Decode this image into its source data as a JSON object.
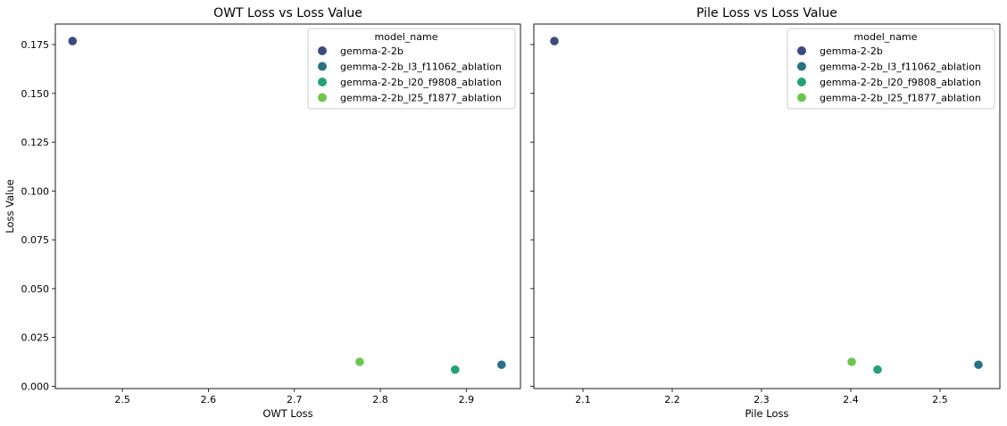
{
  "chart_data": [
    {
      "type": "scatter",
      "title": "OWT Loss vs Loss Value",
      "xlabel": "OWT Loss",
      "ylabel": "Loss Value",
      "xlim": [
        2.422,
        2.963
      ],
      "ylim": [
        -0.0012,
        0.1855
      ],
      "xticks": [
        "2.5",
        "2.6",
        "2.7",
        "2.8",
        "2.9"
      ],
      "yticks": [
        "0.000",
        "0.025",
        "0.050",
        "0.075",
        "0.100",
        "0.125",
        "0.150",
        "0.175"
      ],
      "legend": {
        "title": "model_name",
        "position": "top-right",
        "entries": [
          "gemma-2-2b",
          "gemma-2-2b_l3_f11062_ablation",
          "gemma-2-2b_l20_f9808_ablation",
          "gemma-2-2b_l25_f1877_ablation"
        ]
      },
      "series": [
        {
          "name": "gemma-2-2b",
          "color": "#3b4a7f",
          "x": [
            2.442
          ],
          "y": [
            0.1768
          ]
        },
        {
          "name": "gemma-2-2b_l3_f11062_ablation",
          "color": "#2a7185",
          "x": [
            2.941
          ],
          "y": [
            0.011
          ]
        },
        {
          "name": "gemma-2-2b_l20_f9808_ablation",
          "color": "#22a27a",
          "x": [
            2.887
          ],
          "y": [
            0.0085
          ]
        },
        {
          "name": "gemma-2-2b_l25_f1877_ablation",
          "color": "#6ec64d",
          "x": [
            2.776
          ],
          "y": [
            0.0125
          ]
        }
      ]
    },
    {
      "type": "scatter",
      "title": "Pile Loss vs Loss Value",
      "xlabel": "Pile Loss",
      "ylabel": "",
      "xlim": [
        2.045,
        2.567
      ],
      "ylim": [
        -0.0012,
        0.1855
      ],
      "xticks": [
        "2.1",
        "2.2",
        "2.3",
        "2.4",
        "2.5"
      ],
      "yticks": [
        "",
        "",
        "",
        "",
        "",
        "",
        "",
        ""
      ],
      "legend": {
        "title": "model_name",
        "position": "top-right",
        "entries": [
          "gemma-2-2b",
          "gemma-2-2b_l3_f11062_ablation",
          "gemma-2-2b_l20_f9808_ablation",
          "gemma-2-2b_l25_f1877_ablation"
        ]
      },
      "series": [
        {
          "name": "gemma-2-2b",
          "color": "#3b4a7f",
          "x": [
            2.068
          ],
          "y": [
            0.1768
          ]
        },
        {
          "name": "gemma-2-2b_l3_f11062_ablation",
          "color": "#2a7185",
          "x": [
            2.543
          ],
          "y": [
            0.011
          ]
        },
        {
          "name": "gemma-2-2b_l20_f9808_ablation",
          "color": "#22a27a",
          "x": [
            2.43
          ],
          "y": [
            0.0085
          ]
        },
        {
          "name": "gemma-2-2b_l25_f1877_ablation",
          "color": "#6ec64d",
          "x": [
            2.401
          ],
          "y": [
            0.0125
          ]
        }
      ]
    }
  ]
}
